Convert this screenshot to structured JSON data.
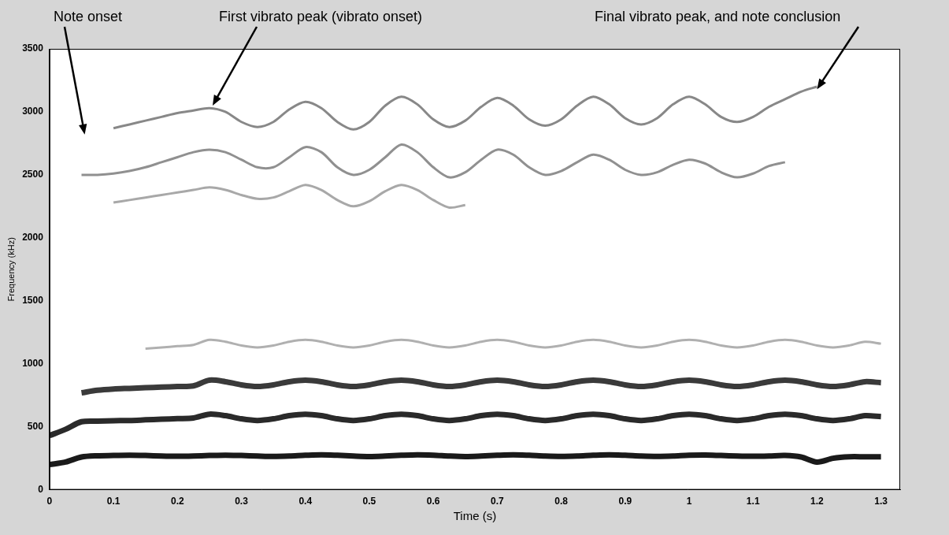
{
  "chart_data": {
    "type": "line",
    "x_label": "Time (s)",
    "y_label": "Frequency (kHz)",
    "xlim": [
      0,
      1.33
    ],
    "xticks": [
      0,
      0.1,
      0.2,
      0.3,
      0.4,
      0.5,
      0.6,
      0.7,
      0.8,
      0.9,
      1,
      1.1,
      1.2,
      1.3
    ],
    "ylim": [
      0,
      3500
    ],
    "yticks": [
      0,
      500,
      1000,
      1500,
      2000,
      2500,
      3000,
      3500
    ],
    "grid": false,
    "x": [
      0,
      0.025,
      0.05,
      0.075,
      0.1,
      0.125,
      0.15,
      0.175,
      0.2,
      0.225,
      0.25,
      0.275,
      0.3,
      0.325,
      0.35,
      0.375,
      0.4,
      0.425,
      0.45,
      0.475,
      0.5,
      0.525,
      0.55,
      0.575,
      0.6,
      0.625,
      0.65,
      0.675,
      0.7,
      0.725,
      0.75,
      0.775,
      0.8,
      0.825,
      0.85,
      0.875,
      0.9,
      0.925,
      0.95,
      0.975,
      1,
      1.025,
      1.05,
      1.075,
      1.1,
      1.125,
      1.15,
      1.175,
      1.2,
      1.225,
      1.25,
      1.275,
      1.3
    ],
    "series": [
      {
        "color": "#1a1a1a",
        "values": [
          200,
          220,
          260,
          270,
          272,
          274,
          272,
          268,
          266,
          268,
          272,
          275,
          272,
          268,
          265,
          268,
          274,
          278,
          274,
          268,
          264,
          268,
          274,
          278,
          275,
          268,
          264,
          268,
          274,
          278,
          274,
          268,
          265,
          268,
          274,
          278,
          274,
          268,
          265,
          268,
          274,
          276,
          272,
          268,
          266,
          268,
          272,
          260,
          220,
          250,
          262,
          262,
          262
        ]
      },
      {
        "color": "#2a2a2a",
        "values": [
          430,
          480,
          540,
          545,
          548,
          550,
          555,
          560,
          565,
          570,
          600,
          588,
          563,
          550,
          563,
          588,
          600,
          588,
          563,
          550,
          563,
          588,
          600,
          588,
          563,
          550,
          563,
          588,
          600,
          588,
          563,
          550,
          563,
          588,
          600,
          588,
          563,
          550,
          563,
          588,
          600,
          588,
          563,
          550,
          563,
          588,
          600,
          588,
          563,
          550,
          563,
          588,
          580
        ]
      },
      {
        "color": "#3a3a3a",
        "values": [
          null,
          null,
          770,
          790,
          800,
          805,
          810,
          815,
          820,
          825,
          870,
          858,
          833,
          820,
          833,
          858,
          870,
          858,
          833,
          820,
          833,
          858,
          870,
          858,
          833,
          820,
          833,
          858,
          870,
          858,
          833,
          820,
          833,
          858,
          870,
          858,
          833,
          820,
          833,
          858,
          870,
          858,
          833,
          820,
          833,
          858,
          870,
          858,
          833,
          820,
          833,
          858,
          850
        ]
      },
      {
        "color": "#b0b0b0",
        "values": [
          null,
          null,
          null,
          null,
          null,
          null,
          1120,
          1130,
          1140,
          1150,
          1190,
          1175,
          1145,
          1130,
          1145,
          1175,
          1190,
          1175,
          1145,
          1130,
          1145,
          1175,
          1190,
          1175,
          1145,
          1130,
          1145,
          1175,
          1190,
          1175,
          1145,
          1130,
          1145,
          1175,
          1190,
          1175,
          1145,
          1130,
          1145,
          1175,
          1190,
          1175,
          1145,
          1130,
          1145,
          1175,
          1190,
          1175,
          1145,
          1130,
          1145,
          1175,
          1160
        ]
      },
      {
        "color": "#a8a8a8",
        "values": [
          null,
          null,
          null,
          null,
          2280,
          2300,
          2320,
          2340,
          2360,
          2380,
          2400,
          2380,
          2340,
          2310,
          2320,
          2370,
          2420,
          2380,
          2300,
          2250,
          2290,
          2370,
          2420,
          2380,
          2300,
          2240,
          2260,
          null,
          null,
          null,
          null,
          null,
          null,
          null,
          null,
          null,
          null,
          null,
          null,
          null,
          null,
          null,
          null,
          null,
          null,
          null,
          null,
          null,
          null,
          null,
          null,
          null,
          null
        ]
      },
      {
        "color": "#909090",
        "values": [
          null,
          null,
          2500,
          2500,
          2510,
          2530,
          2560,
          2600,
          2640,
          2680,
          2700,
          2680,
          2620,
          2560,
          2560,
          2640,
          2720,
          2680,
          2560,
          2500,
          2540,
          2640,
          2740,
          2680,
          2560,
          2480,
          2520,
          2620,
          2700,
          2660,
          2560,
          2500,
          2530,
          2600,
          2660,
          2620,
          2540,
          2500,
          2520,
          2580,
          2620,
          2590,
          2520,
          2480,
          2510,
          2570,
          2600,
          null,
          null,
          null,
          null,
          null,
          null
        ]
      },
      {
        "color": "#888888",
        "values": [
          null,
          null,
          null,
          null,
          2870,
          2900,
          2930,
          2960,
          2990,
          3010,
          3030,
          3000,
          2920,
          2880,
          2920,
          3020,
          3080,
          3030,
          2920,
          2860,
          2920,
          3050,
          3120,
          3060,
          2940,
          2880,
          2930,
          3040,
          3110,
          3050,
          2940,
          2890,
          2940,
          3050,
          3120,
          3060,
          2950,
          2900,
          2950,
          3060,
          3120,
          3060,
          2960,
          2920,
          2960,
          3040,
          3100,
          3160,
          3200,
          null,
          null,
          null,
          null
        ]
      }
    ],
    "annotations": [
      {
        "text": "Note onset",
        "x": 0.055,
        "y": 2820
      },
      {
        "text": "First vibrato peak (vibrato onset)",
        "x": 0.255,
        "y": 3050
      },
      {
        "text": "Final vibrato peak, and note conclusion",
        "x": 1.2,
        "y": 3180
      }
    ]
  }
}
